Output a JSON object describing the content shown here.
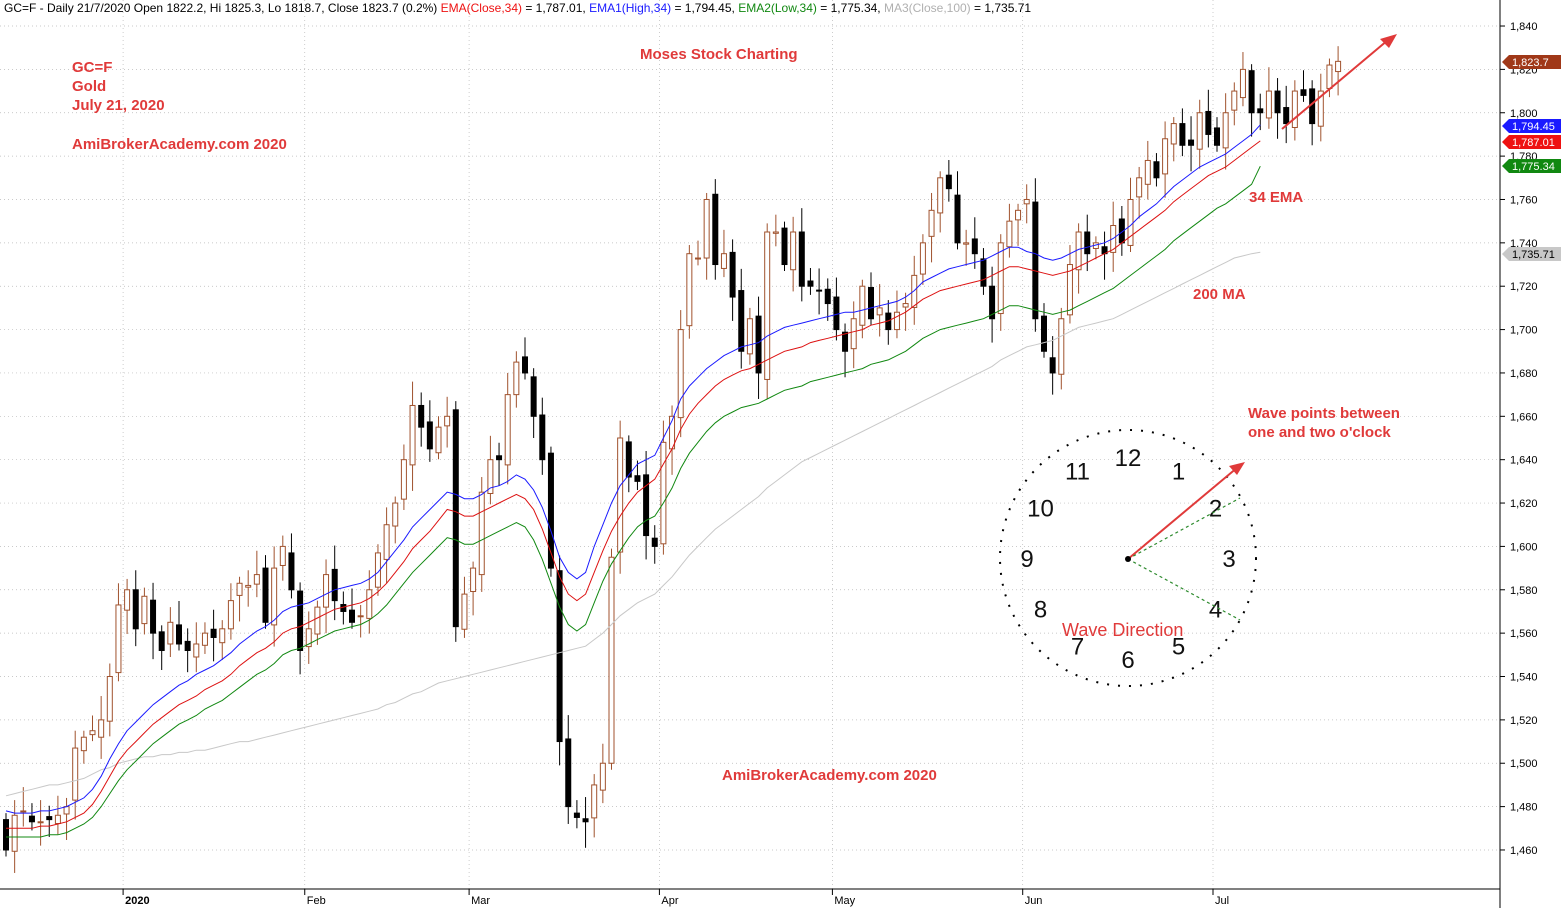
{
  "header": {
    "ticker": "GC=F",
    "period": "Daily 21/7/2020",
    "ohlc": "Open 1822.2, Hi 1825.3, Lo 1818.7, Close 1823.7 (0.2%)",
    "ema_label": "EMA(Close,34)",
    "ema_value": "= 1,787.01,",
    "ema1_label": "EMA1(High,34)",
    "ema1_value": "= 1,794.45,",
    "ema2_label": "EMA2(Low,34)",
    "ema2_value": "= 1,775.34,",
    "ma3_label": "MA3(Close,100)",
    "ma3_value": "= 1,735.71"
  },
  "annotations": {
    "symbol": "GC=F",
    "name": "Gold",
    "date": "July 21, 2020",
    "site_top": "AmiBrokerAcademy.com  2020",
    "brand": "Moses Stock Charting",
    "ema_note": "34 EMA",
    "ma_note": "200 MA",
    "wave_note_1": "Wave points between",
    "wave_note_2": "one and two o'clock",
    "site_bottom": "AmiBrokerAcademy.com  2020",
    "wave_direction": "Wave Direction"
  },
  "clock": {
    "numbers": [
      "12",
      "1",
      "2",
      "3",
      "4",
      "5",
      "6",
      "7",
      "8",
      "9",
      "10",
      "11"
    ]
  },
  "chart_data": {
    "type": "candlestick",
    "y_ticks": [
      1460,
      1480,
      1500,
      1520,
      1540,
      1560,
      1580,
      1600,
      1620,
      1640,
      1660,
      1680,
      1700,
      1720,
      1740,
      1760,
      1780,
      1800,
      1820,
      1840
    ],
    "y_tick_labels": [
      "1,460",
      "1,480",
      "1,500",
      "1,520",
      "1,540",
      "1,560",
      "1,580",
      "1,600",
      "1,620",
      "1,640",
      "1,660",
      "1,680",
      "1,700",
      "1,720",
      "1,740",
      "1,760",
      "1,780",
      "1,800",
      "1,820",
      "1,840"
    ],
    "ylim": [
      1442,
      1852
    ],
    "x_labels": [
      {
        "label": "2020",
        "index": 14
      },
      {
        "label": "Feb",
        "index": 35
      },
      {
        "label": "Mar",
        "index": 54
      },
      {
        "label": "Apr",
        "index": 76
      },
      {
        "label": "May",
        "index": 96
      },
      {
        "label": "Jun",
        "index": 118
      },
      {
        "label": "Jul",
        "index": 140
      }
    ],
    "price_tags": [
      {
        "label": "1,823.7",
        "value": 1823.7,
        "color": "#a03818"
      },
      {
        "label": "1,794.45",
        "value": 1794.45,
        "color": "#1a1aff"
      },
      {
        "label": "1,787.01",
        "value": 1787.01,
        "color": "#ee1111"
      },
      {
        "label": "1,775.34",
        "value": 1775.34,
        "color": "#118811"
      },
      {
        "label": "1,735.71",
        "value": 1735.71,
        "color": "#c8c8c8"
      }
    ],
    "closes": [
      1460,
      1476,
      1478,
      1473,
      1473,
      1474,
      1476,
      1480,
      1507,
      1512,
      1515,
      1520,
      1540,
      1573,
      1580,
      1562,
      1577,
      1560,
      1552,
      1565,
      1555,
      1552,
      1555,
      1560,
      1558,
      1562,
      1575,
      1583,
      1582,
      1587,
      1565,
      1590,
      1600,
      1580,
      1552,
      1562,
      1572,
      1587,
      1575,
      1570,
      1565,
      1568,
      1580,
      1597,
      1610,
      1620,
      1640,
      1665,
      1655,
      1645,
      1655,
      1660,
      1563,
      1578,
      1590,
      1625,
      1640,
      1640,
      1670,
      1685,
      1680,
      1660,
      1640,
      1590,
      1510,
      1480,
      1475,
      1473,
      1490,
      1500,
      1595,
      1650,
      1632,
      1630,
      1605,
      1600,
      1648,
      1660,
      1700,
      1735,
      1733,
      1760,
      1730,
      1735,
      1715,
      1690,
      1705,
      1680,
      1745,
      1745,
      1730,
      1745,
      1720,
      1720,
      1718,
      1712,
      1700,
      1690,
      1705,
      1720,
      1705,
      1710,
      1700,
      1708,
      1712,
      1725,
      1740,
      1755,
      1770,
      1765,
      1740,
      1740,
      1735,
      1720,
      1705,
      1740,
      1750,
      1755,
      1760,
      1705,
      1690,
      1680,
      1705,
      1730,
      1745,
      1735,
      1740,
      1735,
      1748,
      1740,
      1760,
      1770,
      1778,
      1770,
      1788,
      1795,
      1785,
      1785,
      1800,
      1790,
      1785,
      1800,
      1810,
      1820,
      1800,
      1800,
      1810,
      1800,
      1795,
      1810,
      1808,
      1795,
      1810,
      1822,
      1823.7
    ],
    "ema_high_34": [
      1478,
      1477,
      1477,
      1477,
      1478,
      1478,
      1479,
      1480,
      1482,
      1484,
      1488,
      1494,
      1502,
      1509,
      1515,
      1519,
      1523,
      1527,
      1530,
      1533,
      1536,
      1538,
      1541,
      1543,
      1545,
      1548,
      1551,
      1555,
      1558,
      1561,
      1563,
      1566,
      1570,
      1572,
      1573,
      1574,
      1576,
      1578,
      1580,
      1581,
      1582,
      1583,
      1585,
      1588,
      1593,
      1598,
      1603,
      1609,
      1613,
      1617,
      1621,
      1625,
      1624,
      1622,
      1622,
      1624,
      1627,
      1628,
      1630,
      1633,
      1631,
      1626,
      1618,
      1607,
      1595,
      1588,
      1585,
      1588,
      1600,
      1610,
      1620,
      1628,
      1633,
      1638,
      1640,
      1642,
      1650,
      1658,
      1668,
      1674,
      1678,
      1682,
      1685,
      1688,
      1690,
      1692,
      1693,
      1694,
      1697,
      1699,
      1701,
      1702,
      1703,
      1704,
      1705,
      1706,
      1707,
      1708,
      1708,
      1709,
      1710,
      1711,
      1712,
      1713,
      1715,
      1718,
      1722,
      1724,
      1726,
      1728,
      1729,
      1730,
      1731,
      1732,
      1734,
      1736,
      1738,
      1738,
      1736,
      1735,
      1733,
      1732,
      1733,
      1735,
      1737,
      1738,
      1739,
      1740,
      1742,
      1745,
      1748,
      1752,
      1755,
      1758,
      1762,
      1766,
      1769,
      1772,
      1775,
      1777,
      1779,
      1781,
      1784,
      1787,
      1790,
      1794.45
    ],
    "ema_close_34": [
      1470,
      1470,
      1470,
      1470,
      1471,
      1471,
      1472,
      1473,
      1475,
      1477,
      1481,
      1487,
      1494,
      1501,
      1506,
      1510,
      1514,
      1518,
      1521,
      1524,
      1527,
      1529,
      1531,
      1534,
      1536,
      1538,
      1541,
      1545,
      1548,
      1551,
      1553,
      1556,
      1560,
      1562,
      1563,
      1565,
      1567,
      1569,
      1571,
      1572,
      1573,
      1574,
      1576,
      1579,
      1583,
      1588,
      1593,
      1599,
      1603,
      1607,
      1612,
      1617,
      1616,
      1614,
      1614,
      1616,
      1618,
      1620,
      1622,
      1624,
      1622,
      1617,
      1608,
      1597,
      1586,
      1578,
      1575,
      1578,
      1588,
      1598,
      1607,
      1614,
      1620,
      1625,
      1628,
      1631,
      1638,
      1645,
      1654,
      1661,
      1666,
      1670,
      1674,
      1677,
      1679,
      1681,
      1682,
      1684,
      1686,
      1688,
      1690,
      1691,
      1692,
      1694,
      1695,
      1696,
      1697,
      1698,
      1699,
      1700,
      1702,
      1703,
      1704,
      1706,
      1708,
      1711,
      1714,
      1716,
      1718,
      1719,
      1720,
      1721,
      1722,
      1723,
      1725,
      1727,
      1729,
      1729,
      1728,
      1727,
      1726,
      1725,
      1726,
      1727,
      1729,
      1731,
      1733,
      1735,
      1737,
      1740,
      1743,
      1746,
      1749,
      1752,
      1755,
      1759,
      1762,
      1765,
      1768,
      1771,
      1773,
      1775,
      1778,
      1781,
      1784,
      1787.01
    ],
    "ema_low_34": [
      1466,
      1466,
      1466,
      1466,
      1466,
      1467,
      1467,
      1468,
      1470,
      1472,
      1475,
      1480,
      1486,
      1492,
      1497,
      1501,
      1505,
      1509,
      1512,
      1515,
      1518,
      1520,
      1522,
      1525,
      1527,
      1529,
      1532,
      1535,
      1538,
      1541,
      1543,
      1546,
      1550,
      1552,
      1553,
      1555,
      1557,
      1559,
      1561,
      1562,
      1563,
      1564,
      1566,
      1569,
      1573,
      1578,
      1583,
      1588,
      1592,
      1596,
      1600,
      1604,
      1603,
      1601,
      1601,
      1603,
      1605,
      1607,
      1609,
      1611,
      1609,
      1603,
      1594,
      1583,
      1572,
      1564,
      1561,
      1564,
      1574,
      1584,
      1592,
      1598,
      1604,
      1609,
      1612,
      1614,
      1620,
      1627,
      1636,
      1643,
      1648,
      1653,
      1657,
      1660,
      1662,
      1664,
      1665,
      1666,
      1668,
      1670,
      1672,
      1673,
      1674,
      1676,
      1677,
      1678,
      1679,
      1680,
      1681,
      1682,
      1684,
      1685,
      1686,
      1688,
      1690,
      1693,
      1696,
      1698,
      1700,
      1701,
      1702,
      1703,
      1704,
      1705,
      1707,
      1709,
      1711,
      1711,
      1710,
      1709,
      1708,
      1707,
      1708,
      1709,
      1711,
      1713,
      1715,
      1717,
      1719,
      1722,
      1725,
      1728,
      1731,
      1734,
      1737,
      1741,
      1744,
      1747,
      1750,
      1753,
      1756,
      1758,
      1761,
      1764,
      1767,
      1775.34
    ],
    "ma_close_100": [
      1485,
      1486,
      1487,
      1488,
      1489,
      1490,
      1490,
      1491,
      1492,
      1493,
      1495,
      1497,
      1498,
      1500,
      1501,
      1502,
      1503,
      1503,
      1504,
      1504,
      1505,
      1505,
      1506,
      1506,
      1507,
      1508,
      1509,
      1510,
      1510,
      1511,
      1512,
      1513,
      1514,
      1515,
      1516,
      1517,
      1518,
      1519,
      1520,
      1521,
      1522,
      1523,
      1524,
      1525,
      1527,
      1528,
      1530,
      1532,
      1533,
      1535,
      1537,
      1538,
      1539,
      1540,
      1541,
      1542,
      1543,
      1544,
      1545,
      1546,
      1547,
      1548,
      1549,
      1550,
      1551,
      1552,
      1553,
      1554,
      1557,
      1560,
      1564,
      1568,
      1571,
      1574,
      1576,
      1578,
      1582,
      1586,
      1591,
      1596,
      1600,
      1604,
      1608,
      1611,
      1614,
      1617,
      1620,
      1623,
      1627,
      1630,
      1633,
      1636,
      1639,
      1641,
      1643,
      1645,
      1647,
      1649,
      1651,
      1653,
      1655,
      1657,
      1659,
      1661,
      1663,
      1665,
      1667,
      1669,
      1671,
      1673,
      1675,
      1677,
      1679,
      1681,
      1683,
      1686,
      1688,
      1690,
      1692,
      1693,
      1694,
      1695,
      1697,
      1699,
      1701,
      1702,
      1703,
      1704,
      1705,
      1707,
      1709,
      1711,
      1713,
      1715,
      1717,
      1719,
      1721,
      1723,
      1725,
      1727,
      1729,
      1731,
      1733,
      1734,
      1735,
      1735.71
    ]
  }
}
